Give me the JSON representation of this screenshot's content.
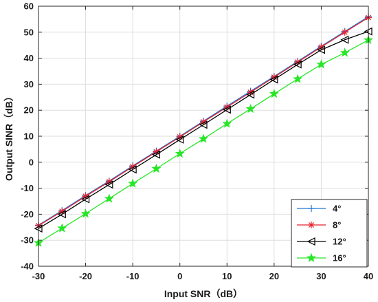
{
  "chart_data": {
    "type": "line",
    "title": "",
    "xlabel": "Input SNR（dB）",
    "ylabel": "Output SINR（dB）",
    "xlim": [
      -30,
      40
    ],
    "ylim": [
      -40,
      60
    ],
    "xticks": [
      -30,
      -20,
      -10,
      0,
      10,
      20,
      30,
      40
    ],
    "yticks": [
      -40,
      -30,
      -20,
      -10,
      0,
      10,
      20,
      30,
      40,
      50,
      60
    ],
    "grid": true,
    "legend_position": "bottom-right",
    "x": [
      -30,
      -25,
      -20,
      -15,
      -10,
      -5,
      0,
      5,
      10,
      15,
      20,
      25,
      30,
      35,
      40
    ],
    "series": [
      {
        "name": "4°",
        "color": "#1f77d4",
        "marker": "plus",
        "values": [
          -24.2,
          -18.6,
          -12.8,
          -7.2,
          -1.4,
          4.3,
          10.0,
          15.8,
          21.6,
          27.3,
          33.0,
          38.8,
          44.6,
          50.3,
          56.0
        ]
      },
      {
        "name": "8°",
        "color": "#e8202a",
        "marker": "asterisk",
        "values": [
          -24.4,
          -18.9,
          -13.1,
          -7.5,
          -1.7,
          4.0,
          9.7,
          15.5,
          21.2,
          26.9,
          32.7,
          38.5,
          44.3,
          50.0,
          55.6
        ]
      },
      {
        "name": "12°",
        "color": "#000000",
        "marker": "triangle-left",
        "values": [
          -25.5,
          -20.0,
          -14.2,
          -8.6,
          -2.8,
          2.9,
          8.7,
          14.4,
          20.2,
          26.0,
          31.8,
          37.6,
          43.2,
          47.1,
          50.3
        ]
      },
      {
        "name": "16°",
        "color": "#27e627",
        "marker": "pentagram",
        "values": [
          -31.0,
          -25.4,
          -19.8,
          -14.0,
          -8.2,
          -2.5,
          3.3,
          9.0,
          14.8,
          20.5,
          26.3,
          32.0,
          37.6,
          42.1,
          47.0
        ]
      }
    ]
  }
}
